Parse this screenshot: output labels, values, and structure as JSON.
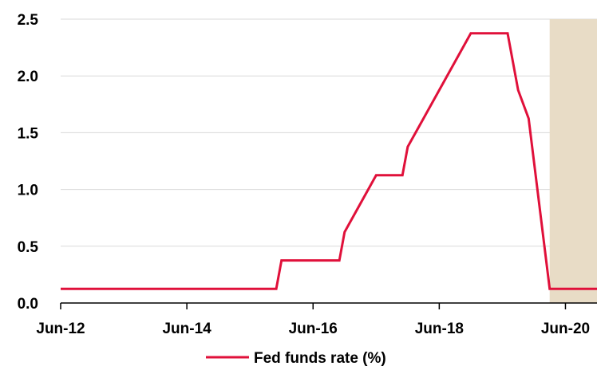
{
  "chart_data": {
    "type": "line",
    "title": "",
    "xlabel": "",
    "ylabel": "",
    "x_tick_labels": [
      "Jun-12",
      "Jun-14",
      "Jun-16",
      "Jun-18",
      "Jun-20"
    ],
    "x_tick_dates": [
      "2012-06",
      "2014-06",
      "2016-06",
      "2018-06",
      "2020-06"
    ],
    "xlim": [
      "2012-06",
      "2020-12"
    ],
    "y_tick_labels": [
      "0.0",
      "0.5",
      "1.0",
      "1.5",
      "2.0",
      "2.5"
    ],
    "ylim": [
      0,
      2.5
    ],
    "grid": "horizontal",
    "legend_position": "bottom-center",
    "shaded_region": {
      "start": "2020-03",
      "end": "2020-12",
      "color": "#e8dcc6"
    },
    "series": [
      {
        "name": "Fed funds rate (%)",
        "color": "#e0103a",
        "points": [
          [
            "2012-06",
            0.125
          ],
          [
            "2015-11",
            0.125
          ],
          [
            "2015-12",
            0.375
          ],
          [
            "2016-11",
            0.375
          ],
          [
            "2016-12",
            0.625
          ],
          [
            "2017-03",
            0.875
          ],
          [
            "2017-06",
            1.125
          ],
          [
            "2017-11",
            1.125
          ],
          [
            "2017-12",
            1.375
          ],
          [
            "2018-03",
            1.625
          ],
          [
            "2018-06",
            1.875
          ],
          [
            "2018-09",
            2.125
          ],
          [
            "2018-12",
            2.375
          ],
          [
            "2019-07",
            2.375
          ],
          [
            "2019-09",
            1.875
          ],
          [
            "2019-11",
            1.625
          ],
          [
            "2020-03",
            0.125
          ],
          [
            "2020-12",
            0.125
          ]
        ]
      }
    ]
  }
}
